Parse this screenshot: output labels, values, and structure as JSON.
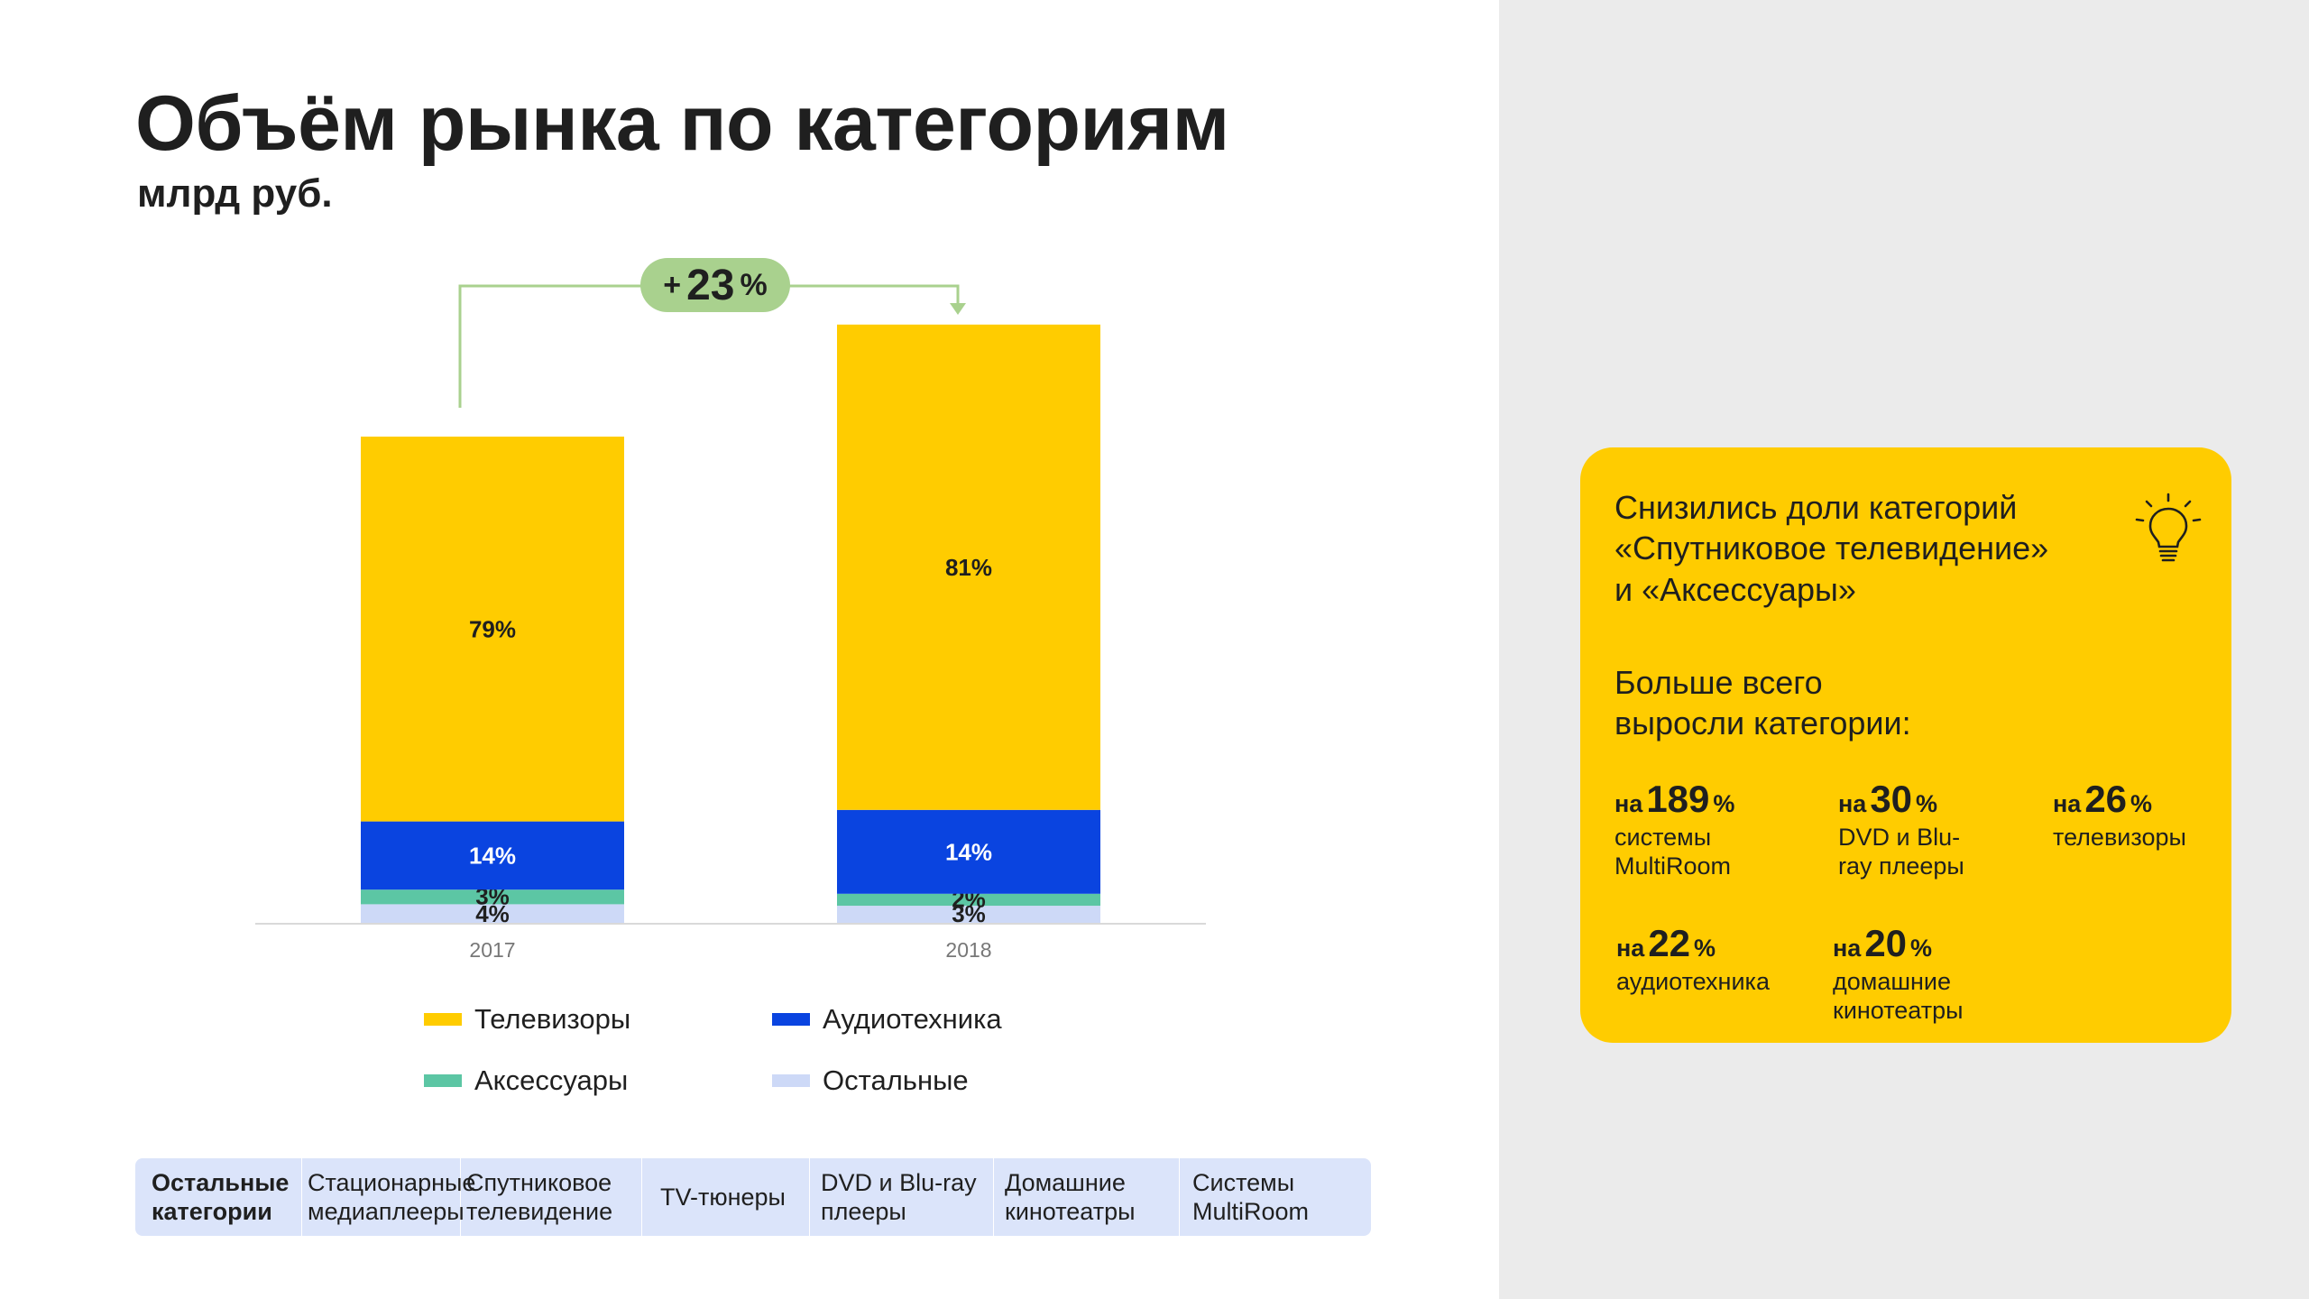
{
  "title": "Объём рынка по категориям",
  "subtitle": "млрд руб.",
  "growth": {
    "sign": "+",
    "value": "23",
    "unit": "%"
  },
  "colors": {
    "tv": "#ffcc00",
    "audio": "#0a44e0",
    "accessories": "#5cc6a4",
    "others": "#cdd9f7",
    "growth_badge": "#a9d18e",
    "panel_bg": "#ebebeb",
    "insight_bg": "#ffcc00"
  },
  "chart_data": {
    "type": "bar",
    "stacked": true,
    "categories": [
      "2017",
      "2018"
    ],
    "totals_relative": [
      1.0,
      1.23
    ],
    "series": [
      {
        "name": "Остальные",
        "values": [
          4,
          3
        ],
        "labels": [
          "4%",
          "3%"
        ]
      },
      {
        "name": "Аксессуары",
        "values": [
          3,
          2
        ],
        "labels": [
          "3%",
          "2%"
        ]
      },
      {
        "name": "Аудиотехника",
        "values": [
          14,
          14
        ],
        "labels": [
          "14%",
          "14%"
        ]
      },
      {
        "name": "Телевизоры",
        "values": [
          79,
          81
        ],
        "labels": [
          "79%",
          "81%"
        ]
      }
    ],
    "legend_position": "bottom",
    "grid": false
  },
  "legend": [
    {
      "label": "Телевизоры",
      "color_key": "tv"
    },
    {
      "label": "Аудиотехника",
      "color_key": "audio"
    },
    {
      "label": "Аксессуары",
      "color_key": "accessories"
    },
    {
      "label": "Остальные",
      "color_key": "others"
    }
  ],
  "others_table": {
    "header": "Остальные\nкатегории",
    "cells": [
      "Стационарные\nмедиаплееры",
      "Спутниковое\nтелевидение",
      "TV-тюнеры",
      "DVD и Blu-ray\nплееры",
      "Домашние\nкинотеатры",
      "Системы\nMultiRoom"
    ]
  },
  "insight": {
    "text1": "Снизились доли категорий\n«Спутниковое телевидение»\nи «Аксессуары»",
    "text2": "Больше всего\nвыросли категории:",
    "icon": "lightbulb-icon",
    "stats": [
      {
        "prefix": "на",
        "value": "189",
        "unit": "%",
        "desc": "системы\nMultiRoom"
      },
      {
        "prefix": "на",
        "value": "30",
        "unit": "%",
        "desc": "DVD и Blu-\nray плееры"
      },
      {
        "prefix": "на",
        "value": "26",
        "unit": "%",
        "desc": "телевизоры"
      },
      {
        "prefix": "на",
        "value": "22",
        "unit": "%",
        "desc": "аудиотехника"
      },
      {
        "prefix": "на",
        "value": "20",
        "unit": "%",
        "desc": "домашние\nкинотеатры"
      }
    ]
  }
}
